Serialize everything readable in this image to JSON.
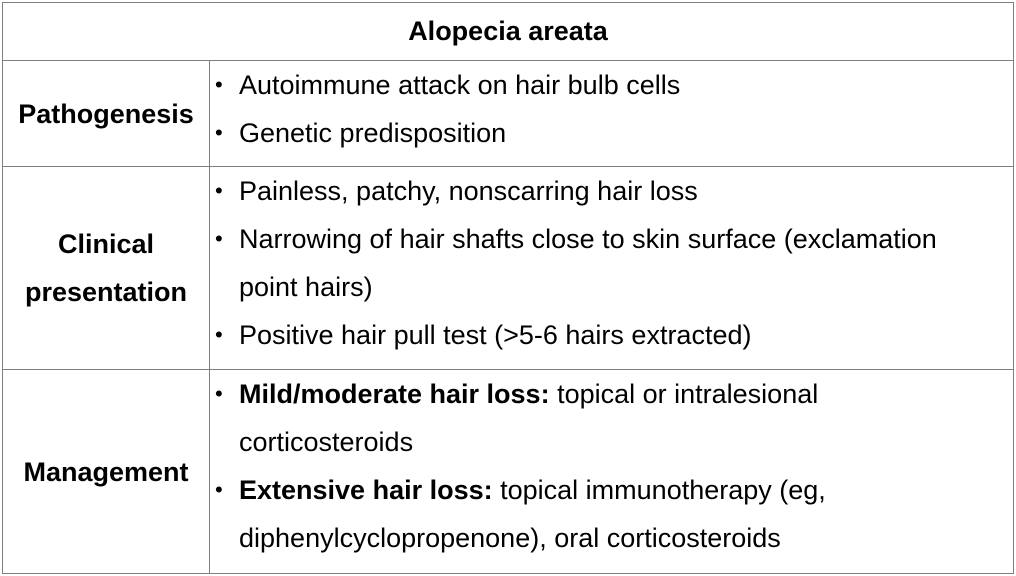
{
  "title": "Alopecia areata",
  "rows": [
    {
      "label_lines": [
        "Pathogenesis"
      ],
      "items": [
        {
          "bold": "",
          "text": "Autoimmune attack on hair bulb cells"
        },
        {
          "bold": "",
          "text": "Genetic predisposition"
        }
      ]
    },
    {
      "label_lines": [
        "Clinical",
        "presentation"
      ],
      "items": [
        {
          "bold": "",
          "text": "Painless, patchy, nonscarring hair loss"
        },
        {
          "bold": "",
          "text": "Narrowing of hair shafts close to skin surface (exclamation point hairs)"
        },
        {
          "bold": "",
          "text": "Positive hair pull test (>5-6 hairs extracted)"
        }
      ]
    },
    {
      "label_lines": [
        "Management"
      ],
      "items": [
        {
          "bold": "Mild/moderate hair loss:",
          "text": " topical or intralesional corticosteroids"
        },
        {
          "bold": "Extensive hair loss:",
          "text": " topical immunotherapy (eg, diphenylcyclopropenone), oral corticosteroids"
        }
      ]
    }
  ],
  "bullet_glyph": "•"
}
